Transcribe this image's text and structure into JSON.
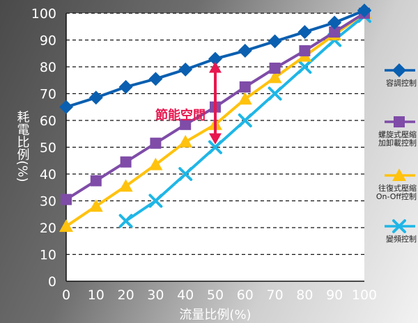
{
  "chart_data": {
    "type": "line",
    "xlabel": "流量比例(%)",
    "ylabel": "耗電比例(%)",
    "xlim": [
      0,
      100
    ],
    "ylim": [
      0,
      100
    ],
    "x_ticks": [
      0,
      10,
      20,
      30,
      40,
      50,
      60,
      70,
      80,
      90,
      100
    ],
    "y_ticks": [
      0,
      10,
      20,
      30,
      40,
      50,
      60,
      70,
      80,
      90,
      100
    ],
    "grid": "dashed-horizontal",
    "legend_placement": "right",
    "series": [
      {
        "name": "容調控制",
        "color": "#0a5fb0",
        "marker": "diamond",
        "x": [
          0,
          10,
          20,
          30,
          40,
          50,
          60,
          70,
          80,
          90,
          100
        ],
        "y": [
          65,
          68.5,
          72.5,
          75.5,
          79,
          83,
          86,
          89.5,
          93,
          96.5,
          101
        ]
      },
      {
        "name": "螺旋式壓縮 加卸載控制",
        "color": "#7f4ca8",
        "marker": "square",
        "x": [
          0,
          10,
          20,
          30,
          40,
          50,
          60,
          70,
          80,
          90,
          100
        ],
        "y": [
          30.5,
          37.5,
          44.5,
          51.5,
          58.5,
          65,
          72.5,
          79.5,
          86,
          93,
          100
        ]
      },
      {
        "name": "往復式壓縮 On-Off控制",
        "color": "#ffc20e",
        "marker": "triangle",
        "x": [
          0,
          10,
          20,
          30,
          40,
          50,
          60,
          70,
          80,
          90,
          100
        ],
        "y": [
          20.5,
          28,
          35.5,
          43.5,
          52,
          58.5,
          68,
          76,
          84,
          92,
          100
        ]
      },
      {
        "name": "變頻控制",
        "color": "#1fb6e6",
        "marker": "x",
        "x": [
          20,
          30,
          40,
          50,
          60,
          70,
          80,
          90,
          100
        ],
        "y": [
          22.5,
          30,
          40,
          50,
          60,
          70,
          80,
          90,
          99
        ]
      }
    ],
    "annotation": {
      "text": "節能空間",
      "color": "#e8174f",
      "x": 50,
      "y_from": 50,
      "y_to": 83
    }
  }
}
